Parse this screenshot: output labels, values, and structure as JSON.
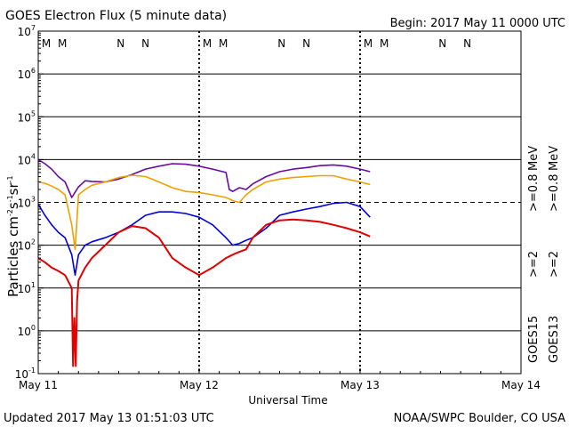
{
  "chart_data": {
    "type": "line",
    "title": "GOES Electron Flux (5 minute data)",
    "begin_label": "Begin: 2017 May 11 0000 UTC",
    "xlabel": "Universal Time",
    "ylabel": {
      "base": "Particles cm",
      "exp1": "-2",
      "mid1": "s",
      "exp2": "-1",
      "mid2": "sr",
      "exp3": "-1"
    },
    "updated": "Updated 2017 May 13 01:51:03 UTC",
    "credit": "NOAA/SWPC Boulder, CO USA",
    "x_unit": "hours since 2017 May 11 00:00 UTC",
    "xlim": [
      0,
      72
    ],
    "x_ticks": [
      {
        "pos": 0,
        "label": "May 11"
      },
      {
        "pos": 24,
        "label": "May 12"
      },
      {
        "pos": 48,
        "label": "May 13"
      },
      {
        "pos": 72,
        "label": "May 14"
      }
    ],
    "y_scale": "log",
    "ylim": [
      0.1,
      10000000
    ],
    "y_ticks": [
      {
        "value": 0.1,
        "base": "10",
        "exp": "-1"
      },
      {
        "value": 1,
        "base": "10",
        "exp": "0"
      },
      {
        "value": 10,
        "base": "10",
        "exp": "1"
      },
      {
        "value": 100,
        "base": "10",
        "exp": "2"
      },
      {
        "value": 1000,
        "base": "10",
        "exp": "3"
      },
      {
        "value": 10000,
        "base": "10",
        "exp": "4"
      },
      {
        "value": 100000,
        "base": "10",
        "exp": "5"
      },
      {
        "value": 1000000,
        "base": "10",
        "exp": "6"
      },
      {
        "value": 10000000,
        "base": "10",
        "exp": "7"
      }
    ],
    "threshold_line": 1000,
    "grid": true,
    "day_markers": [
      24,
      48
    ],
    "mn_markers": [
      {
        "x": 1.2,
        "label": "M",
        "color": "#e00000"
      },
      {
        "x": 3.6,
        "label": "M",
        "color": "#0000e0"
      },
      {
        "x": 12.3,
        "label": "N",
        "color": "#e00000"
      },
      {
        "x": 16.0,
        "label": "N",
        "color": "#0000e0"
      },
      {
        "x": 25.2,
        "label": "M",
        "color": "#e00000"
      },
      {
        "x": 27.6,
        "label": "M",
        "color": "#0000e0"
      },
      {
        "x": 36.3,
        "label": "N",
        "color": "#e00000"
      },
      {
        "x": 40.0,
        "label": "N",
        "color": "#0000e0"
      },
      {
        "x": 49.2,
        "label": "M",
        "color": "#e00000"
      },
      {
        "x": 51.6,
        "label": "M",
        "color": "#0000e0"
      },
      {
        "x": 60.3,
        "label": "N",
        "color": "#e00000"
      },
      {
        "x": 64.0,
        "label": "N",
        "color": "#0000e0"
      }
    ],
    "legend_placement": "right",
    "legend": [
      {
        "label": "GOES15",
        "color": "#000000",
        "col": 0,
        "row": 0
      },
      {
        "label": ">=2",
        "color": "#0000e0",
        "col": 0,
        "row": 1
      },
      {
        "label": ">=0.8",
        "color": "#6a0aa0",
        "col": 0,
        "row": 2
      },
      {
        "label": "MeV",
        "color": "#000000",
        "col": 0,
        "row": 3
      },
      {
        "label": "GOES13",
        "color": "#000000",
        "col": 1,
        "row": 0
      },
      {
        "label": ">=2",
        "color": "#e00000",
        "col": 1,
        "row": 1
      },
      {
        "label": ">=0.8",
        "color": "#f0a000",
        "col": 1,
        "row": 2
      },
      {
        "label": "MeV",
        "color": "#000000",
        "col": 1,
        "row": 3
      }
    ],
    "series": [
      {
        "color": "#6a0aa0",
        "x": [
          0,
          1,
          2,
          3,
          4,
          5,
          6,
          7,
          8,
          10,
          12,
          14,
          16,
          18,
          20,
          22,
          24,
          26,
          28,
          28.5,
          29,
          30,
          31,
          32,
          34,
          36,
          38,
          40,
          42,
          44,
          46,
          48,
          49.5
        ],
        "y": [
          10000,
          8000,
          6000,
          4000,
          3000,
          1300,
          2300,
          3200,
          3100,
          3000,
          3500,
          4500,
          6000,
          7000,
          8000,
          7800,
          7000,
          6000,
          5000,
          2000,
          1800,
          2200,
          2000,
          2700,
          4000,
          5200,
          6000,
          6500,
          7200,
          7500,
          7000,
          6000,
          5200
        ]
      },
      {
        "color": "#f0a000",
        "x": [
          0,
          1,
          2,
          3,
          4,
          5,
          5.5,
          6,
          7,
          8,
          10,
          12,
          14,
          16,
          18,
          20,
          22,
          24,
          26,
          28,
          29,
          30,
          31,
          32,
          34,
          36,
          38,
          40,
          42,
          44,
          46,
          48,
          49.5
        ],
        "y": [
          3000,
          2800,
          2400,
          2000,
          1500,
          300,
          80,
          1500,
          2000,
          2500,
          3000,
          3800,
          4300,
          4000,
          3000,
          2200,
          1800,
          1700,
          1500,
          1300,
          1100,
          1000,
          1500,
          2000,
          3000,
          3500,
          3800,
          4000,
          4200,
          4200,
          3500,
          3000,
          2600
        ]
      },
      {
        "color": "#0000e0",
        "x": [
          0,
          1,
          2,
          3,
          4,
          5,
          5.5,
          6,
          7,
          8,
          10,
          12,
          14,
          16,
          18,
          20,
          22,
          24,
          26,
          28,
          29,
          30,
          31,
          32,
          34,
          36,
          38,
          40,
          42,
          44,
          46,
          48,
          49.5
        ],
        "y": [
          900,
          500,
          300,
          200,
          150,
          60,
          20,
          60,
          100,
          120,
          150,
          200,
          300,
          500,
          600,
          600,
          550,
          450,
          300,
          150,
          100,
          110,
          130,
          150,
          250,
          500,
          600,
          700,
          800,
          950,
          1000,
          800,
          450
        ]
      },
      {
        "color": "#e00000",
        "x": [
          0,
          1,
          2,
          3,
          4,
          5,
          5.2,
          5.4,
          5.6,
          5.8,
          6,
          7,
          8,
          10,
          12,
          14,
          16,
          18,
          20,
          22,
          24,
          26,
          28,
          29,
          30,
          31,
          32,
          34,
          36,
          38,
          40,
          42,
          44,
          46,
          48,
          49.5
        ],
        "y": [
          50,
          40,
          30,
          25,
          20,
          10,
          0.15,
          2,
          0.15,
          5,
          15,
          30,
          50,
          100,
          200,
          280,
          250,
          150,
          50,
          30,
          20,
          30,
          50,
          60,
          70,
          80,
          150,
          300,
          380,
          400,
          380,
          350,
          300,
          250,
          200,
          160
        ]
      }
    ]
  }
}
